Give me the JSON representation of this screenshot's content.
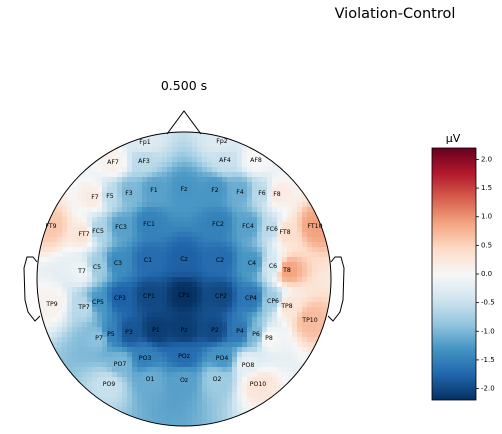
{
  "figure": {
    "suptitle": "Violation-Control",
    "subtitle": "0.500 s"
  },
  "chart_data": {
    "type": "topomap",
    "time": "0.500 s",
    "unit": "µV",
    "clim": [
      -2.2,
      2.2
    ],
    "colormap": "RdBu_r",
    "colorbar_ticks": [
      "2.0",
      "1.5",
      "1.0",
      "0.5",
      "0.0",
      "-0.5",
      "-1.0",
      "-1.5",
      "-2.0"
    ],
    "colorbar_tick_values": [
      2.0,
      1.5,
      1.0,
      0.5,
      0.0,
      -0.5,
      -1.0,
      -1.5,
      -2.0
    ],
    "electrodes": [
      {
        "name": "Fp1",
        "value": -0.3
      },
      {
        "name": "Fp2",
        "value": -0.3
      },
      {
        "name": "AF7",
        "value": 0.1
      },
      {
        "name": "AF3",
        "value": -0.6
      },
      {
        "name": "AF4",
        "value": -0.5
      },
      {
        "name": "AF8",
        "value": 0.0
      },
      {
        "name": "F7",
        "value": 0.2
      },
      {
        "name": "F5",
        "value": -0.6
      },
      {
        "name": "F3",
        "value": -1.0
      },
      {
        "name": "F1",
        "value": -1.2
      },
      {
        "name": "Fz",
        "value": -1.3
      },
      {
        "name": "F2",
        "value": -1.3
      },
      {
        "name": "F4",
        "value": -1.1
      },
      {
        "name": "F6",
        "value": -0.6
      },
      {
        "name": "F8",
        "value": 0.2
      },
      {
        "name": "FT9",
        "value": 0.6
      },
      {
        "name": "FT7",
        "value": 0.3
      },
      {
        "name": "FC5",
        "value": -0.7
      },
      {
        "name": "FC3",
        "value": -1.2
      },
      {
        "name": "FC1",
        "value": -1.5
      },
      {
        "name": "FC2",
        "value": -1.5
      },
      {
        "name": "FC4",
        "value": -1.2
      },
      {
        "name": "FC6",
        "value": -0.6
      },
      {
        "name": "FT8",
        "value": 0.4
      },
      {
        "name": "FT10",
        "value": 0.9
      },
      {
        "name": "T7",
        "value": -0.1
      },
      {
        "name": "C5",
        "value": -0.8
      },
      {
        "name": "C3",
        "value": -1.4
      },
      {
        "name": "C1",
        "value": -1.7
      },
      {
        "name": "Cz",
        "value": -1.8
      },
      {
        "name": "C2",
        "value": -1.7
      },
      {
        "name": "C4",
        "value": -1.3
      },
      {
        "name": "C6",
        "value": -0.4
      },
      {
        "name": "T8",
        "value": 0.9
      },
      {
        "name": "TP9",
        "value": 0.1
      },
      {
        "name": "TP7",
        "value": -0.6
      },
      {
        "name": "CP5",
        "value": -1.3
      },
      {
        "name": "CP3",
        "value": -1.8
      },
      {
        "name": "CP1",
        "value": -2.0
      },
      {
        "name": "CPz",
        "value": -2.2
      },
      {
        "name": "CP2",
        "value": -2.0
      },
      {
        "name": "CP4",
        "value": -1.6
      },
      {
        "name": "CP6",
        "value": -0.8
      },
      {
        "name": "TP8",
        "value": 0.3
      },
      {
        "name": "TP10",
        "value": 0.7
      },
      {
        "name": "P7",
        "value": -0.9
      },
      {
        "name": "P5",
        "value": -1.5
      },
      {
        "name": "P3",
        "value": -1.9
      },
      {
        "name": "P1",
        "value": -2.1
      },
      {
        "name": "Pz",
        "value": -2.1
      },
      {
        "name": "P2",
        "value": -2.0
      },
      {
        "name": "P4",
        "value": -1.6
      },
      {
        "name": "P6",
        "value": -1.0
      },
      {
        "name": "P8",
        "value": 0.0
      },
      {
        "name": "PO7",
        "value": -1.0
      },
      {
        "name": "PO3",
        "value": -1.5
      },
      {
        "name": "POz",
        "value": -1.7
      },
      {
        "name": "PO4",
        "value": -1.3
      },
      {
        "name": "PO8",
        "value": -0.2
      },
      {
        "name": "PO9",
        "value": -0.5
      },
      {
        "name": "O1",
        "value": -1.1
      },
      {
        "name": "Oz",
        "value": -1.2
      },
      {
        "name": "O2",
        "value": -0.8
      },
      {
        "name": "PO10",
        "value": 0.3
      }
    ]
  }
}
